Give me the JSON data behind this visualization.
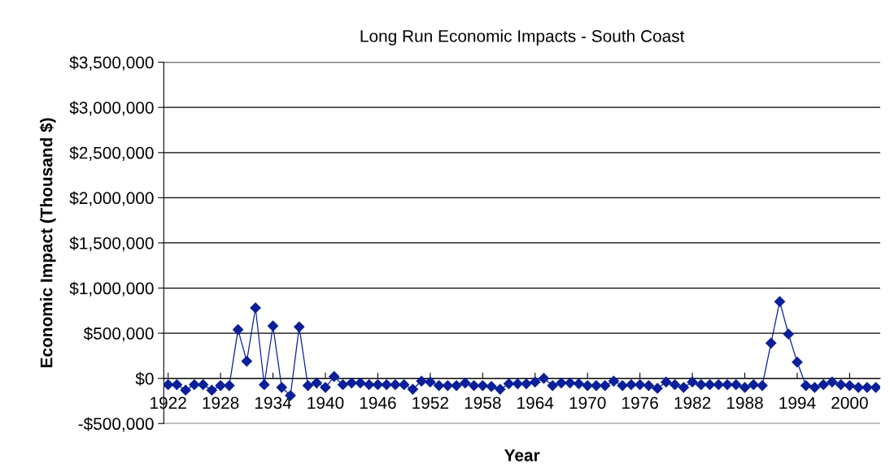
{
  "chart_data": {
    "type": "line",
    "title": "Long Run Economic Impacts - South Coast",
    "xlabel": "Year",
    "ylabel": "Economic Impact (Thousand $)",
    "x": [
      1922,
      1923,
      1924,
      1925,
      1926,
      1927,
      1928,
      1929,
      1930,
      1931,
      1932,
      1933,
      1934,
      1935,
      1936,
      1937,
      1938,
      1939,
      1940,
      1941,
      1942,
      1943,
      1944,
      1945,
      1946,
      1947,
      1948,
      1949,
      1950,
      1951,
      1952,
      1953,
      1954,
      1955,
      1956,
      1957,
      1958,
      1959,
      1960,
      1961,
      1962,
      1963,
      1964,
      1965,
      1966,
      1967,
      1968,
      1969,
      1970,
      1971,
      1972,
      1973,
      1974,
      1975,
      1976,
      1977,
      1978,
      1979,
      1980,
      1981,
      1982,
      1983,
      1984,
      1985,
      1986,
      1987,
      1988,
      1989,
      1990,
      1991,
      1992,
      1993,
      1994,
      1995,
      1996,
      1997,
      1998,
      1999,
      2000,
      2001,
      2002,
      2003
    ],
    "series": [
      {
        "color": "#0a1f99",
        "values": [
          -70000,
          -70000,
          -130000,
          -70000,
          -70000,
          -130000,
          -80000,
          -80000,
          540000,
          190000,
          780000,
          -70000,
          580000,
          -100000,
          -190000,
          570000,
          -80000,
          -50000,
          -100000,
          20000,
          -70000,
          -50000,
          -50000,
          -70000,
          -70000,
          -70000,
          -70000,
          -70000,
          -120000,
          -30000,
          -40000,
          -80000,
          -80000,
          -80000,
          -50000,
          -80000,
          -80000,
          -90000,
          -120000,
          -60000,
          -60000,
          -60000,
          -40000,
          0,
          -80000,
          -50000,
          -50000,
          -60000,
          -80000,
          -80000,
          -80000,
          -30000,
          -80000,
          -70000,
          -70000,
          -80000,
          -110000,
          -40000,
          -70000,
          -100000,
          -40000,
          -70000,
          -70000,
          -70000,
          -70000,
          -70000,
          -100000,
          -70000,
          -80000,
          390000,
          850000,
          490000,
          180000,
          -80000,
          -100000,
          -70000,
          -40000,
          -70000,
          -80000,
          -100000,
          -100000,
          -100000
        ]
      }
    ],
    "xlim": [
      1921.5,
      2003.5
    ],
    "xticks": [
      1922,
      1928,
      1934,
      1940,
      1946,
      1952,
      1958,
      1964,
      1970,
      1976,
      1982,
      1988,
      1994,
      2000
    ],
    "ylim": [
      -500000,
      3500000
    ],
    "yticks": [
      {
        "value": -500000,
        "label": "-$500,000"
      },
      {
        "value": 0,
        "label": "$0"
      },
      {
        "value": 500000,
        "label": "$500,000"
      },
      {
        "value": 1000000,
        "label": "$1,000,000"
      },
      {
        "value": 1500000,
        "label": "$1,500,000"
      },
      {
        "value": 2000000,
        "label": "$2,000,000"
      },
      {
        "value": 2500000,
        "label": "$2,500,000"
      },
      {
        "value": 3000000,
        "label": "$3,000,000"
      },
      {
        "value": 3500000,
        "label": "$3,500,000"
      }
    ],
    "grid": "y",
    "marker": "diamond",
    "line_style": "solid"
  }
}
